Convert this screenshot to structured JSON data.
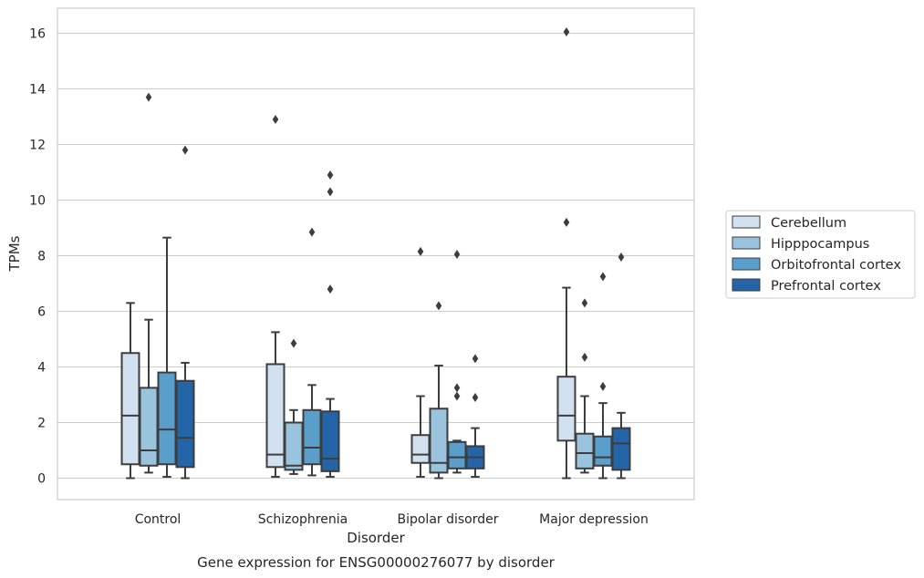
{
  "chart_data": {
    "type": "box",
    "caption": "Gene expression for ENSG00000276077 by disorder",
    "xlabel": "Disorder",
    "ylabel": "TPMs",
    "ylim": [
      -0.8,
      16.9
    ],
    "yticks": [
      "0",
      "2",
      "4",
      "6",
      "8",
      "10",
      "12",
      "14",
      "16"
    ],
    "grid": "horizontal",
    "legend_position": "right-center",
    "categories": [
      "Control",
      "Schizophrenia",
      "Bipolar disorder",
      "Major depression"
    ],
    "series": [
      {
        "name": "Cerebellum",
        "color": "#d1e1f0",
        "boxes": [
          {
            "whisker_low": 0.0,
            "q1": 0.5,
            "median": 2.25,
            "q3": 4.5,
            "whisker_high": 6.3,
            "outliers": []
          },
          {
            "whisker_low": 0.05,
            "q1": 0.4,
            "median": 0.85,
            "q3": 4.1,
            "whisker_high": 5.25,
            "outliers": [
              12.9
            ]
          },
          {
            "whisker_low": 0.05,
            "q1": 0.55,
            "median": 0.85,
            "q3": 1.55,
            "whisker_high": 2.95,
            "outliers": [
              8.15
            ]
          },
          {
            "whisker_low": 0.0,
            "q1": 1.35,
            "median": 2.25,
            "q3": 3.65,
            "whisker_high": 6.85,
            "outliers": [
              9.2,
              16.05
            ]
          }
        ]
      },
      {
        "name": "Hipppocampus",
        "color": "#9ac3de",
        "boxes": [
          {
            "whisker_low": 0.2,
            "q1": 0.45,
            "median": 1.0,
            "q3": 3.25,
            "whisker_high": 5.7,
            "outliers": [
              13.7
            ]
          },
          {
            "whisker_low": 0.15,
            "q1": 0.3,
            "median": 0.45,
            "q3": 2.0,
            "whisker_high": 2.45,
            "outliers": [
              4.85
            ]
          },
          {
            "whisker_low": 0.0,
            "q1": 0.2,
            "median": 0.55,
            "q3": 2.5,
            "whisker_high": 4.05,
            "outliers": [
              6.2
            ]
          },
          {
            "whisker_low": 0.2,
            "q1": 0.35,
            "median": 0.9,
            "q3": 1.6,
            "whisker_high": 2.95,
            "outliers": [
              4.35,
              6.3
            ]
          }
        ]
      },
      {
        "name": "Orbitofrontal cortex",
        "color": "#5a9ecc",
        "boxes": [
          {
            "whisker_low": 0.05,
            "q1": 0.5,
            "median": 1.75,
            "q3": 3.8,
            "whisker_high": 8.65,
            "outliers": []
          },
          {
            "whisker_low": 0.1,
            "q1": 0.5,
            "median": 1.1,
            "q3": 2.45,
            "whisker_high": 3.35,
            "outliers": [
              8.85
            ]
          },
          {
            "whisker_low": 0.2,
            "q1": 0.35,
            "median": 0.75,
            "q3": 1.3,
            "whisker_high": 1.35,
            "outliers": [
              2.95,
              3.25,
              8.05
            ]
          },
          {
            "whisker_low": 0.0,
            "q1": 0.45,
            "median": 0.75,
            "q3": 1.5,
            "whisker_high": 2.7,
            "outliers": [
              3.3,
              7.25
            ]
          }
        ]
      },
      {
        "name": "Prefrontal cortex",
        "color": "#2464a8",
        "boxes": [
          {
            "whisker_low": 0.0,
            "q1": 0.4,
            "median": 1.45,
            "q3": 3.5,
            "whisker_high": 4.15,
            "outliers": [
              11.8
            ]
          },
          {
            "whisker_low": 0.05,
            "q1": 0.25,
            "median": 0.7,
            "q3": 2.4,
            "whisker_high": 2.85,
            "outliers": [
              6.8,
              10.3,
              10.9
            ]
          },
          {
            "whisker_low": 0.05,
            "q1": 0.35,
            "median": 0.75,
            "q3": 1.15,
            "whisker_high": 1.8,
            "outliers": [
              2.9,
              4.3
            ]
          },
          {
            "whisker_low": 0.0,
            "q1": 0.3,
            "median": 1.25,
            "q3": 1.8,
            "whisker_high": 2.35,
            "outliers": [
              7.95
            ]
          }
        ]
      }
    ]
  }
}
